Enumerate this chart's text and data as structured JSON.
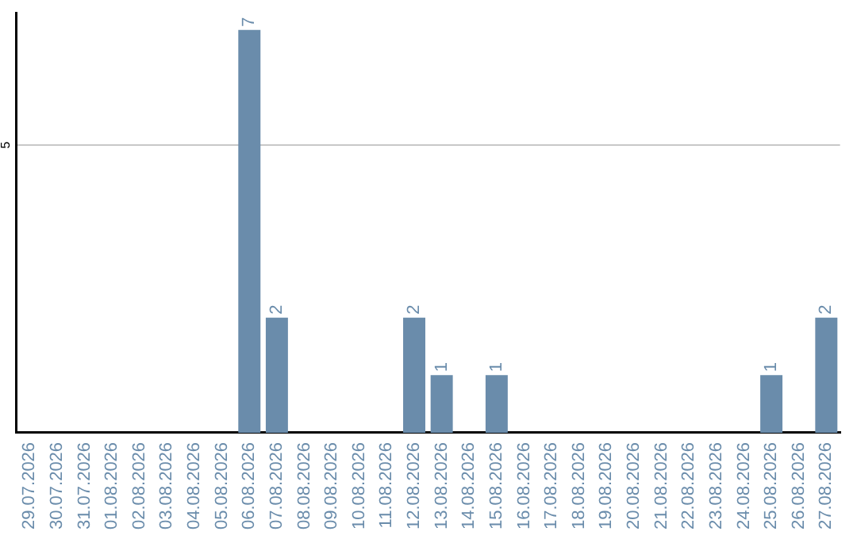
{
  "chart_data": {
    "type": "bar",
    "categories": [
      "29.07.2026",
      "30.07.2026",
      "31.07.2026",
      "01.08.2026",
      "02.08.2026",
      "03.08.2026",
      "04.08.2026",
      "05.08.2026",
      "06.08.2026",
      "07.08.2026",
      "08.08.2026",
      "09.08.2026",
      "10.08.2026",
      "11.08.2026",
      "12.08.2026",
      "13.08.2026",
      "14.08.2026",
      "15.08.2026",
      "16.08.2026",
      "17.08.2026",
      "18.08.2026",
      "19.08.2026",
      "20.08.2026",
      "21.08.2026",
      "22.08.2026",
      "23.08.2026",
      "24.08.2026",
      "25.08.2026",
      "26.08.2026",
      "27.08.2026"
    ],
    "values": [
      0,
      0,
      0,
      0,
      0,
      0,
      0,
      0,
      7,
      2,
      0,
      0,
      0,
      0,
      2,
      1,
      0,
      1,
      0,
      0,
      0,
      0,
      0,
      0,
      0,
      0,
      0,
      1,
      0,
      2
    ],
    "value_labels": [
      null,
      null,
      null,
      null,
      null,
      null,
      null,
      null,
      "7",
      "2",
      null,
      null,
      null,
      null,
      "2",
      "1",
      null,
      "1",
      null,
      null,
      null,
      null,
      null,
      null,
      null,
      null,
      null,
      "1",
      null,
      "2"
    ],
    "color": "#6a8cab",
    "ylim": [
      0,
      7.3
    ],
    "yticks": [
      5
    ],
    "grid": "y",
    "legend": false
  }
}
